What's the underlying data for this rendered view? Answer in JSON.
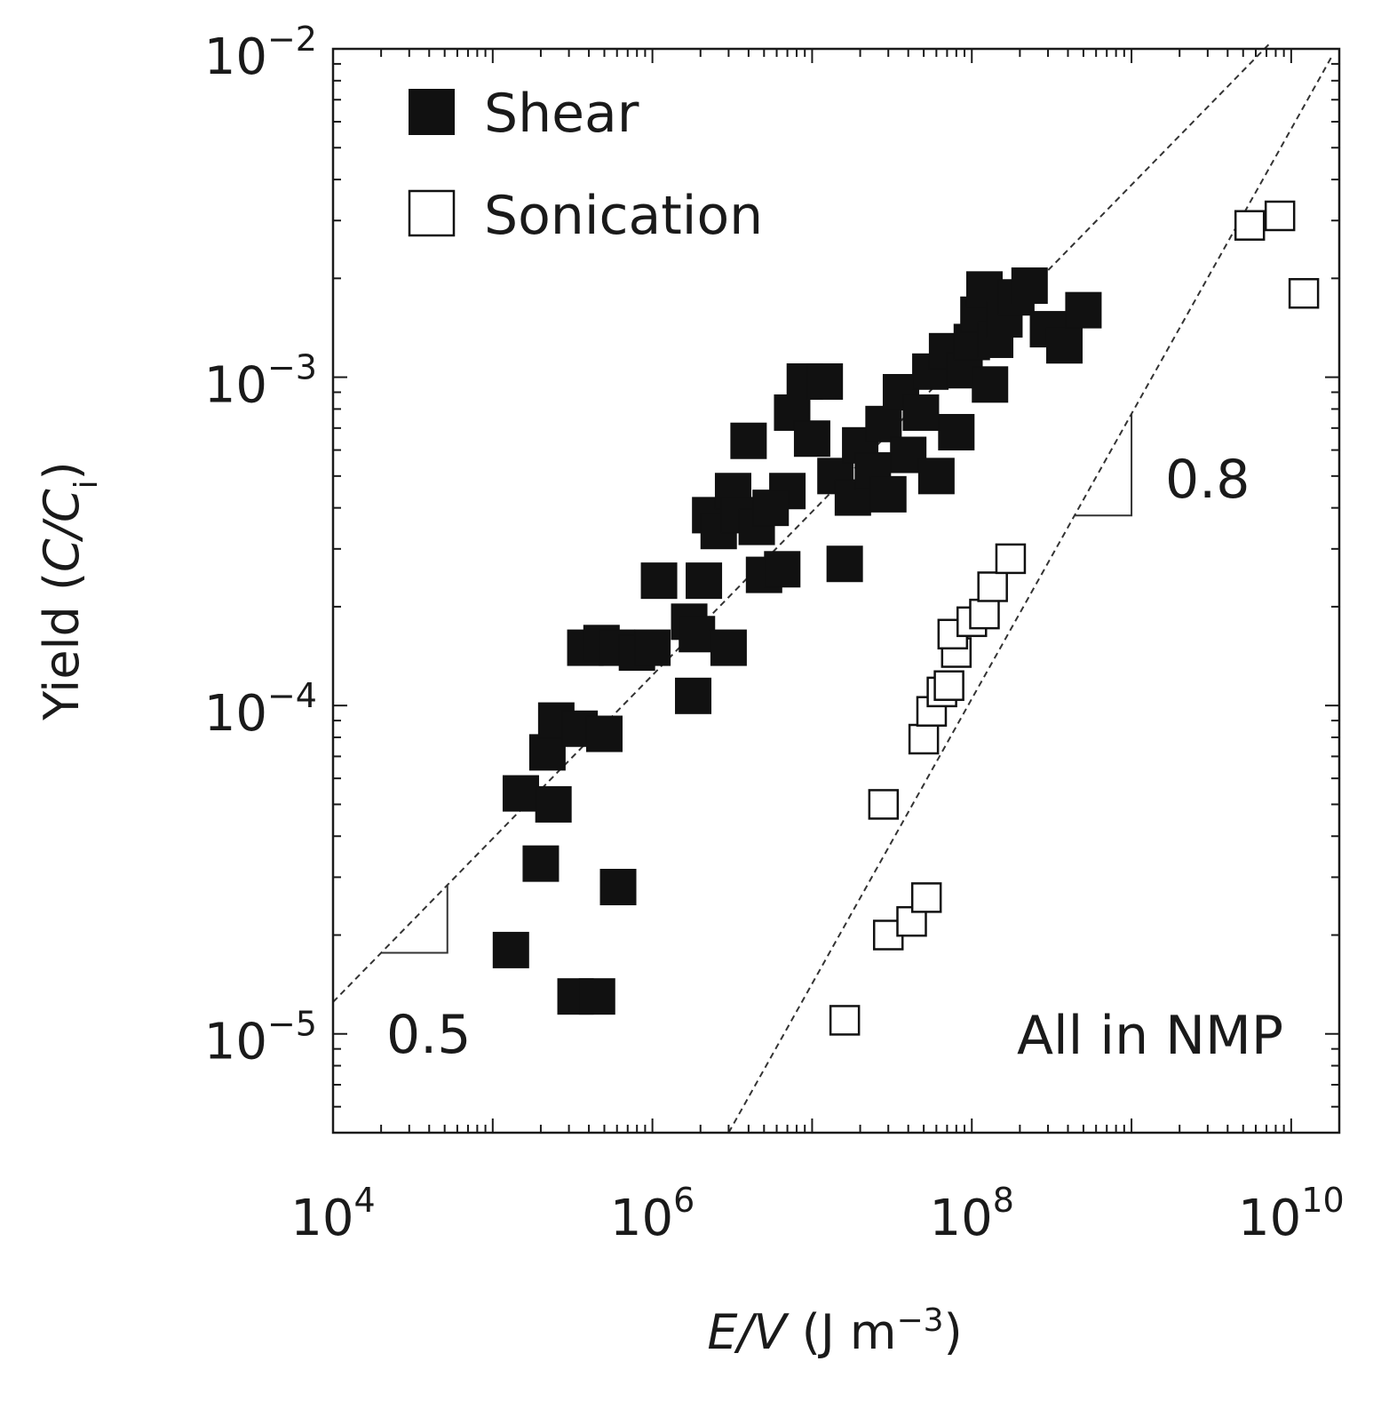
{
  "chart_data": {
    "type": "scatter",
    "xscale": "log",
    "yscale": "log",
    "xlim": [
      10000,
      20000000000
    ],
    "ylim": [
      5e-06,
      0.01
    ],
    "xlabel": {
      "italic": "E/V",
      "units": "(J m",
      "units_sup": "−3",
      "units_end": ")"
    },
    "ylabel": {
      "prefix": "Yield (",
      "italic": "C/C",
      "sub": "i",
      "suffix": ")"
    },
    "x_ticks": [
      {
        "value": 10000,
        "base": "10",
        "exp": "4"
      },
      {
        "value": 1000000,
        "base": "10",
        "exp": "6"
      },
      {
        "value": 100000000,
        "base": "10",
        "exp": "8"
      },
      {
        "value": 10000000000,
        "base": "10",
        "exp": "10"
      }
    ],
    "y_ticks": [
      {
        "value": 0.01,
        "base": "10",
        "exp": "−2"
      },
      {
        "value": 0.001,
        "base": "10",
        "exp": "−3"
      },
      {
        "value": 0.0001,
        "base": "10",
        "exp": "−4"
      },
      {
        "value": 1e-05,
        "base": "10",
        "exp": "−5"
      }
    ],
    "legend": {
      "position": "top-left"
    },
    "series": [
      {
        "name": "Shear",
        "marker": "filled-square",
        "color": "#111111",
        "points": [
          [
            130000,
            1.8e-05
          ],
          [
            150000,
            5.4e-05
          ],
          [
            200000,
            3.3e-05
          ],
          [
            220000,
            7.2e-05
          ],
          [
            250000,
            9e-05
          ],
          [
            240000,
            5e-05
          ],
          [
            350000,
            8.5e-05
          ],
          [
            330000,
            1.3e-05
          ],
          [
            450000,
            1.3e-05
          ],
          [
            500000,
            8.2e-05
          ],
          [
            610000,
            2.8e-05
          ],
          [
            380000,
            0.00015
          ],
          [
            480000,
            0.000155
          ],
          [
            600000,
            0.00015
          ],
          [
            800000,
            0.000145
          ],
          [
            1000000,
            0.00015
          ],
          [
            1100000,
            0.00024
          ],
          [
            1800000,
            0.000107
          ],
          [
            1700000,
            0.00018
          ],
          [
            1900000,
            0.000165
          ],
          [
            2100000,
            0.00024
          ],
          [
            3000000,
            0.00015
          ],
          [
            2300000,
            0.00038
          ],
          [
            2600000,
            0.00034
          ],
          [
            3200000,
            0.00045
          ],
          [
            4000000,
            0.00064
          ],
          [
            3500000,
            0.00038
          ],
          [
            4500000,
            0.00035
          ],
          [
            5000000,
            0.00025
          ],
          [
            6500000,
            0.00026
          ],
          [
            7000000,
            0.00045
          ],
          [
            5500000,
            0.0004
          ],
          [
            7500000,
            0.00078
          ],
          [
            9000000,
            0.00097
          ],
          [
            12000000,
            0.00097
          ],
          [
            10000000,
            0.00065
          ],
          [
            14000000,
            0.0005
          ],
          [
            16000000,
            0.00027
          ],
          [
            18000000,
            0.00043
          ],
          [
            20000000,
            0.00062
          ],
          [
            24000000,
            0.00052
          ],
          [
            28000000,
            0.00072
          ],
          [
            30000000,
            0.00044
          ],
          [
            36000000,
            0.0009
          ],
          [
            40000000,
            0.00058
          ],
          [
            48000000,
            0.00078
          ],
          [
            55000000,
            0.00104
          ],
          [
            60000000,
            0.0005
          ],
          [
            70000000,
            0.0012
          ],
          [
            80000000,
            0.00068
          ],
          [
            90000000,
            0.00105
          ],
          [
            100000000,
            0.00128
          ],
          [
            110000000,
            0.00155
          ],
          [
            120000000,
            0.00185
          ],
          [
            130000000,
            0.00095
          ],
          [
            140000000,
            0.0013
          ],
          [
            160000000,
            0.0015
          ],
          [
            190000000,
            0.00175
          ],
          [
            230000000,
            0.0019
          ],
          [
            300000000,
            0.0014
          ],
          [
            380000000,
            0.00125
          ],
          [
            500000000,
            0.0016
          ]
        ]
      },
      {
        "name": "Sonication",
        "marker": "open-square",
        "color": "#111111",
        "points": [
          [
            16000000,
            1.1e-05
          ],
          [
            28000000,
            5e-05
          ],
          [
            30000000,
            2e-05
          ],
          [
            42000000,
            2.2e-05
          ],
          [
            52000000,
            2.6e-05
          ],
          [
            50000000,
            7.9e-05
          ],
          [
            56000000,
            9.6e-05
          ],
          [
            65000000,
            0.00011
          ],
          [
            72000000,
            0.000115
          ],
          [
            80000000,
            0.000145
          ],
          [
            76000000,
            0.000165
          ],
          [
            100000000,
            0.00018
          ],
          [
            120000000,
            0.00019
          ],
          [
            135000000,
            0.00023
          ],
          [
            175000000,
            0.00028
          ],
          [
            5500000000,
            0.0029
          ],
          [
            8500000000,
            0.0031
          ],
          [
            12000000000,
            0.0018
          ]
        ]
      }
    ],
    "fit_lines": [
      {
        "slope_label": "0.5",
        "x": [
          10000,
          7500000000
        ],
        "y": [
          1.25e-05,
          0.0105
        ]
      },
      {
        "slope_label": "0.8",
        "x": [
          3000000,
          18000000000
        ],
        "y": [
          5e-06,
          0.0095
        ]
      }
    ],
    "annotations": {
      "note": "All in NMP"
    }
  }
}
